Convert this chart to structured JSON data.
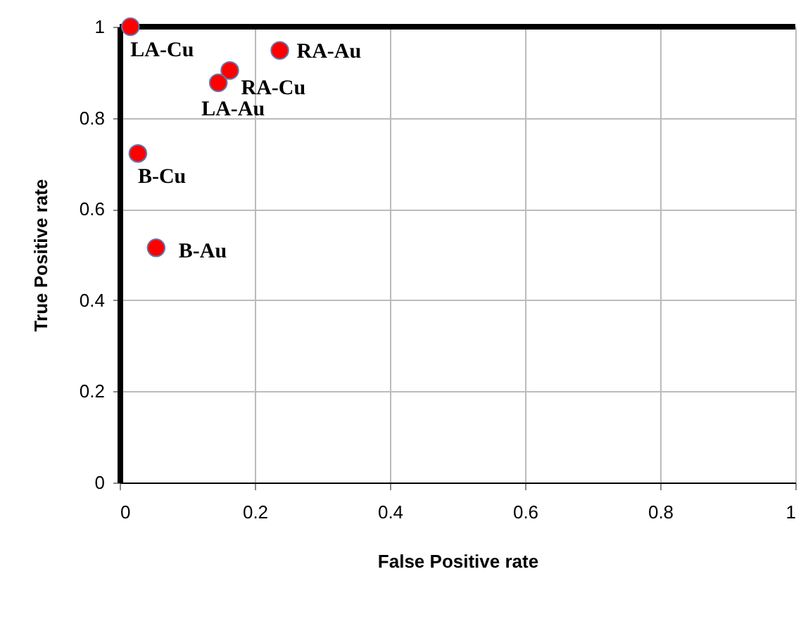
{
  "chart_data": {
    "type": "scatter",
    "xlabel": "False Positive rate",
    "ylabel": "True Positive rate",
    "x": [
      0.016,
      0.163,
      0.146,
      0.237,
      0.027,
      0.054
    ],
    "series": [
      {
        "color": "#ff0000",
        "values": [
          1.0,
          0.904,
          0.877,
          0.948,
          0.722,
          0.515
        ]
      }
    ],
    "value_labels": [
      "LA-Cu",
      "RA-Cu",
      "LA-Au",
      "RA-Au",
      "B-Cu",
      "B-Au"
    ],
    "xlim": [
      0,
      1
    ],
    "xticks": [
      0,
      0.2,
      0.4,
      0.6,
      0.8,
      1
    ],
    "ylim": [
      0,
      1
    ],
    "yticks": [
      0,
      0.2,
      0.4,
      0.6,
      0.8,
      1
    ],
    "grid": true,
    "marker": "circle"
  }
}
